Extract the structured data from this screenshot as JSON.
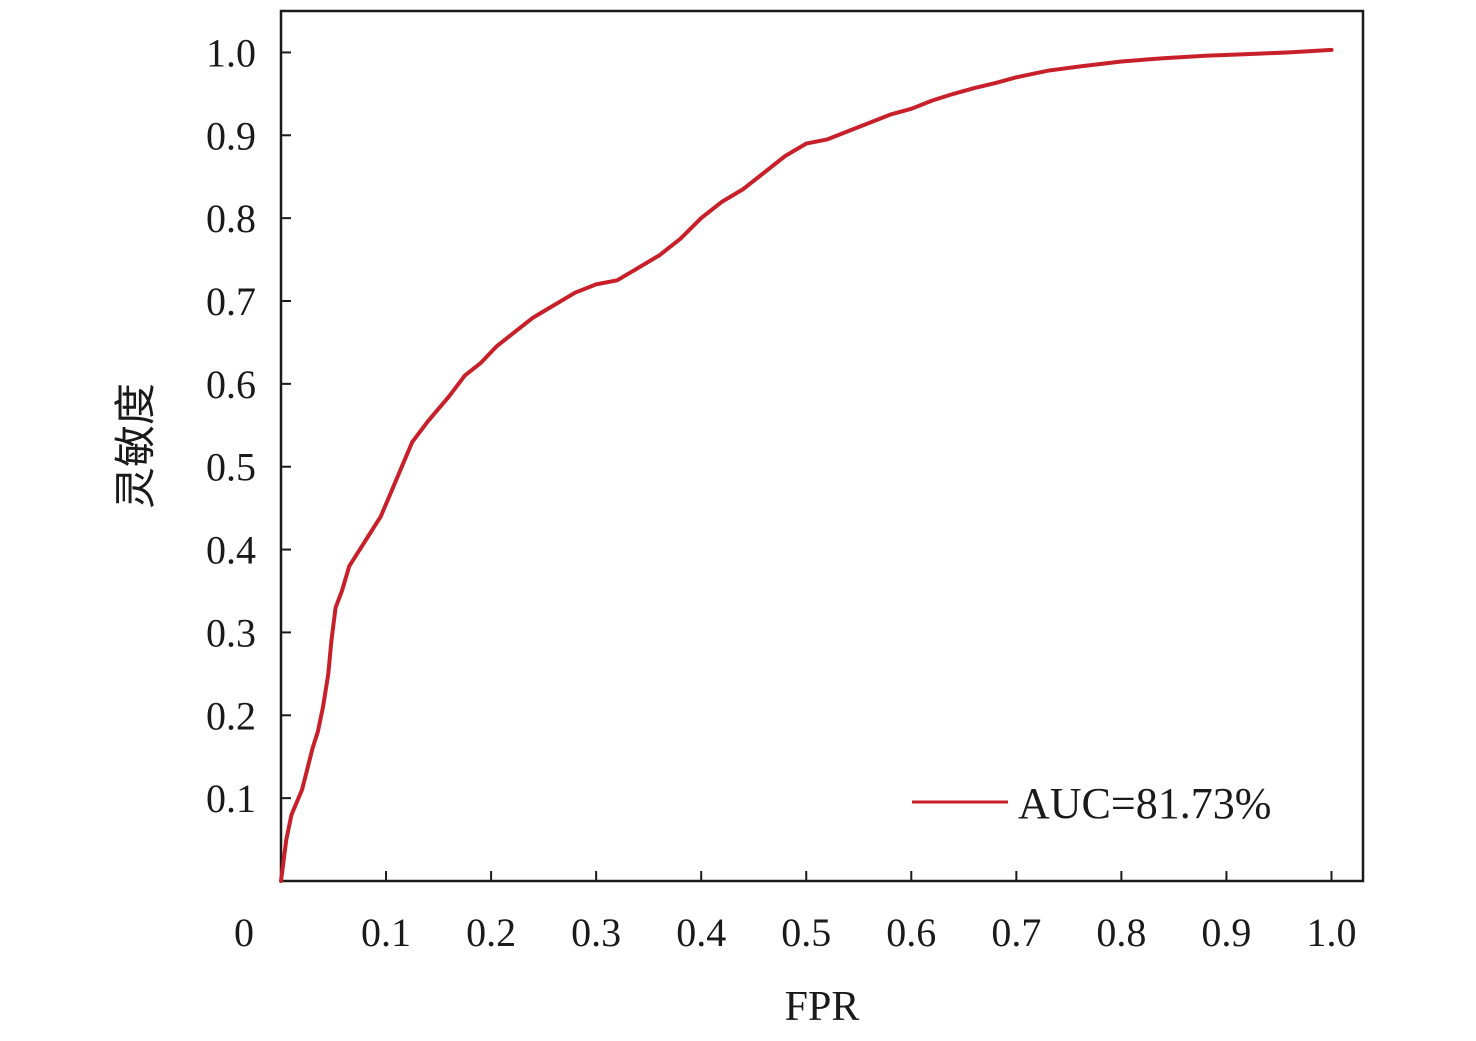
{
  "chart_data": {
    "type": "line",
    "xlabel": "FPR",
    "ylabel": "灵敏度",
    "xlim": [
      0,
      1.03
    ],
    "ylim": [
      0,
      1.05
    ],
    "x_ticks": [
      {
        "value": 0,
        "label": "0"
      },
      {
        "value": 0.1,
        "label": "0.1"
      },
      {
        "value": 0.2,
        "label": "0.2"
      },
      {
        "value": 0.3,
        "label": "0.3"
      },
      {
        "value": 0.4,
        "label": "0.4"
      },
      {
        "value": 0.5,
        "label": "0.5"
      },
      {
        "value": 0.6,
        "label": "0.6"
      },
      {
        "value": 0.7,
        "label": "0.7"
      },
      {
        "value": 0.8,
        "label": "0.8"
      },
      {
        "value": 0.9,
        "label": "0.9"
      },
      {
        "value": 1.0,
        "label": "1.0"
      }
    ],
    "y_ticks": [
      {
        "value": 0.1,
        "label": "0.1"
      },
      {
        "value": 0.2,
        "label": "0.2"
      },
      {
        "value": 0.3,
        "label": "0.3"
      },
      {
        "value": 0.4,
        "label": "0.4"
      },
      {
        "value": 0.5,
        "label": "0.5"
      },
      {
        "value": 0.6,
        "label": "0.6"
      },
      {
        "value": 0.7,
        "label": "0.7"
      },
      {
        "value": 0.8,
        "label": "0.8"
      },
      {
        "value": 0.9,
        "label": "0.9"
      },
      {
        "value": 1.0,
        "label": "1.0"
      }
    ],
    "grid": false,
    "legend_position": "bottom-right",
    "series": [
      {
        "name": "AUC=81.73%",
        "color": "#c8202a",
        "points": [
          [
            0.0,
            0.0
          ],
          [
            0.005,
            0.05
          ],
          [
            0.01,
            0.08
          ],
          [
            0.02,
            0.11
          ],
          [
            0.025,
            0.135
          ],
          [
            0.03,
            0.16
          ],
          [
            0.035,
            0.18
          ],
          [
            0.04,
            0.21
          ],
          [
            0.045,
            0.25
          ],
          [
            0.048,
            0.29
          ],
          [
            0.052,
            0.33
          ],
          [
            0.058,
            0.35
          ],
          [
            0.065,
            0.38
          ],
          [
            0.075,
            0.4
          ],
          [
            0.085,
            0.42
          ],
          [
            0.095,
            0.44
          ],
          [
            0.105,
            0.47
          ],
          [
            0.115,
            0.5
          ],
          [
            0.125,
            0.53
          ],
          [
            0.14,
            0.555
          ],
          [
            0.16,
            0.585
          ],
          [
            0.175,
            0.61
          ],
          [
            0.19,
            0.625
          ],
          [
            0.205,
            0.645
          ],
          [
            0.22,
            0.66
          ],
          [
            0.24,
            0.68
          ],
          [
            0.26,
            0.695
          ],
          [
            0.28,
            0.71
          ],
          [
            0.3,
            0.72
          ],
          [
            0.32,
            0.725
          ],
          [
            0.34,
            0.74
          ],
          [
            0.36,
            0.755
          ],
          [
            0.38,
            0.775
          ],
          [
            0.4,
            0.8
          ],
          [
            0.42,
            0.82
          ],
          [
            0.44,
            0.835
          ],
          [
            0.46,
            0.855
          ],
          [
            0.48,
            0.875
          ],
          [
            0.5,
            0.89
          ],
          [
            0.52,
            0.895
          ],
          [
            0.54,
            0.905
          ],
          [
            0.56,
            0.915
          ],
          [
            0.58,
            0.925
          ],
          [
            0.6,
            0.932
          ],
          [
            0.62,
            0.942
          ],
          [
            0.64,
            0.95
          ],
          [
            0.66,
            0.957
          ],
          [
            0.68,
            0.963
          ],
          [
            0.7,
            0.97
          ],
          [
            0.73,
            0.978
          ],
          [
            0.76,
            0.983
          ],
          [
            0.8,
            0.989
          ],
          [
            0.84,
            0.993
          ],
          [
            0.88,
            0.996
          ],
          [
            0.92,
            0.998
          ],
          [
            0.96,
            1.0
          ],
          [
            1.0,
            1.003
          ]
        ]
      }
    ]
  }
}
